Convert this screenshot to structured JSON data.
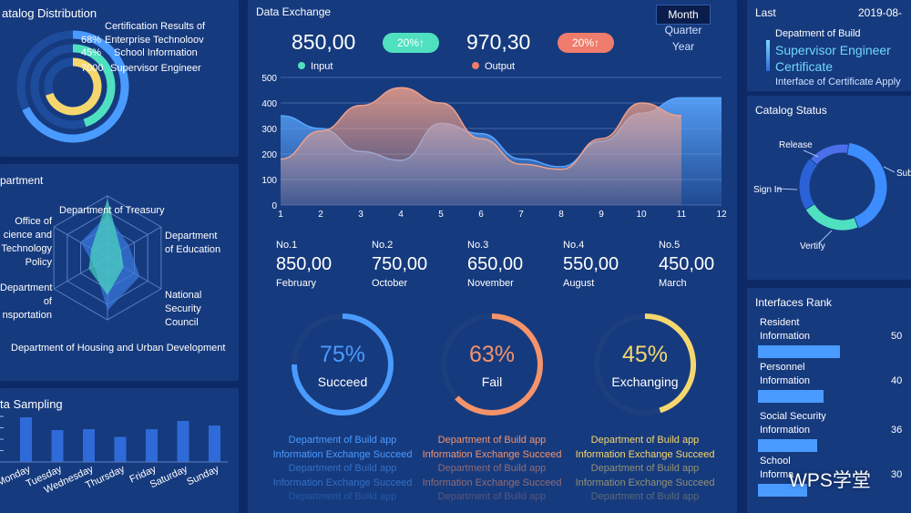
{
  "catalog_distribution": {
    "title": "atalog Distribution",
    "legend_title": "Certification Results of",
    "items": [
      {
        "value": "68%",
        "label": "Enterprise Technoloov",
        "color": "#4a9bff",
        "fraction": 0.68
      },
      {
        "value": "45%",
        "label": "School Information",
        "color": "#4fe0c0",
        "fraction": 0.45
      },
      {
        "value": "7000",
        "label": "Supervisor Engineer",
        "color": "#f5d76e",
        "fraction": 0.7
      }
    ]
  },
  "department": {
    "title": "partment",
    "axes": [
      "Department of Treasury",
      "Department of Education",
      "National Security Council",
      "Department of Housing and Urban Development",
      "Department of Transportation",
      "Office of Science and Technology Policy"
    ],
    "labels": {
      "treasury": "Department of Treasury",
      "education_1": "Department",
      "education_2": "of Education",
      "nsc_1": "National",
      "nsc_2": "Security",
      "nsc_3": "Council",
      "housing": "Department of Housing and Urban Development",
      "transport_1": "Department",
      "transport_2": "of",
      "transport_3": "nsportation",
      "ostp_1": "Office of",
      "ostp_2": "cience and",
      "ostp_3": "Technology",
      "ostp_4": "Policy"
    }
  },
  "data_sampling": {
    "title": "ta Sampling",
    "days": [
      "Monday",
      "Tuesday",
      "Wednesday",
      "Thursday",
      "Friday",
      "Saturday",
      "Sunday"
    ],
    "values": [
      0.98,
      0.7,
      0.72,
      0.55,
      0.72,
      0.9,
      0.8
    ]
  },
  "exchange": {
    "title": "Data Exchange",
    "input_value": "850,00",
    "input_badge": "20%↑",
    "output_value": "970,30",
    "output_badge": "20%↑",
    "input_label": "Input",
    "output_label": "Output",
    "period_options": [
      "Month",
      "Quarter",
      "Year"
    ]
  },
  "chart_data": {
    "type": "area",
    "x": [
      1,
      2,
      3,
      4,
      5,
      6,
      7,
      8,
      9,
      10,
      11,
      12
    ],
    "ylim": [
      0,
      500
    ],
    "yticks": [
      "0",
      "100",
      "200",
      "300",
      "400",
      "500"
    ],
    "xticks": [
      "1",
      "2",
      "3",
      "4",
      "5",
      "6",
      "7",
      "8",
      "9",
      "10",
      "11",
      "12"
    ],
    "grid": true,
    "series": [
      {
        "name": "Input",
        "color": "#5aa6ff",
        "values": [
          350,
          300,
          210,
          175,
          320,
          280,
          180,
          150,
          250,
          360,
          420,
          420
        ]
      },
      {
        "name": "Output",
        "color": "#f0a08a",
        "values": [
          180,
          290,
          390,
          460,
          400,
          260,
          160,
          140,
          260,
          400,
          350,
          null
        ]
      }
    ]
  },
  "rankings": [
    {
      "no": "No.1",
      "value": "850,00",
      "month": "February"
    },
    {
      "no": "No.2",
      "value": "750,00",
      "month": "October"
    },
    {
      "no": "No.3",
      "value": "650,00",
      "month": "November"
    },
    {
      "no": "No.4",
      "value": "550,00",
      "month": "August"
    },
    {
      "no": "No.5",
      "value": "450,00",
      "month": "March"
    }
  ],
  "gauges": [
    {
      "percent": "75%",
      "fraction": 0.75,
      "label": "Succeed",
      "color": "#4a9bff",
      "line1": "Department of Build app",
      "line2": "Information Exchange Succeed",
      "line3": "Department of Build app",
      "line4": "Information Exchange Succeed",
      "line5": "Department of Build app"
    },
    {
      "percent": "63%",
      "fraction": 0.63,
      "label": "Fail",
      "color": "#f5936a",
      "line1": "Department of Build app",
      "line2": "Information Exchange Succeed",
      "line3": "Department of Build app",
      "line4": "Information Exchange Succeed",
      "line5": "Department of Build app"
    },
    {
      "percent": "45%",
      "fraction": 0.45,
      "label": "Exchanging",
      "color": "#f5d76e",
      "line1": "Department of Build app",
      "line2": "Information Exchange Succeed",
      "line3": "Department of Build app",
      "line4": "Information Exchange Succeed",
      "line5": "Department of Build app"
    }
  ],
  "last": {
    "title": "Last",
    "date": "2019-08-",
    "dept": "Depatment of Build",
    "big1": "Supervisor Engineer",
    "big2": "Certificate",
    "sub": "Interface of Certificate Apply"
  },
  "catalog_status": {
    "title": "Catalog Status",
    "labels": {
      "release": "Release",
      "sub": "Sub",
      "signin": "Sign In",
      "verify": "Vertify"
    },
    "segments": [
      {
        "name": "Sub",
        "color": "#3d8dff",
        "fraction": 0.42
      },
      {
        "name": "Vertify",
        "color": "#4fe0c0",
        "fraction": 0.22
      },
      {
        "name": "Sign In",
        "color": "#2b62d8",
        "fraction": 0.2
      },
      {
        "name": "Release",
        "color": "#4a6fe8",
        "fraction": 0.16
      }
    ]
  },
  "interfaces_rank": {
    "title": "Interfaces Rank",
    "items": [
      {
        "line1": "Resident",
        "line2": "Information",
        "value": "50",
        "fraction": 0.9
      },
      {
        "line1": "Personnel",
        "line2": "Information",
        "value": "40",
        "fraction": 0.72
      },
      {
        "line1": "Social Security",
        "line2": "Information",
        "value": "36",
        "fraction": 0.65
      },
      {
        "line1": "School",
        "line2": "Informa",
        "value": "30",
        "fraction": 0.54
      }
    ]
  },
  "watermark": "WPS学堂"
}
